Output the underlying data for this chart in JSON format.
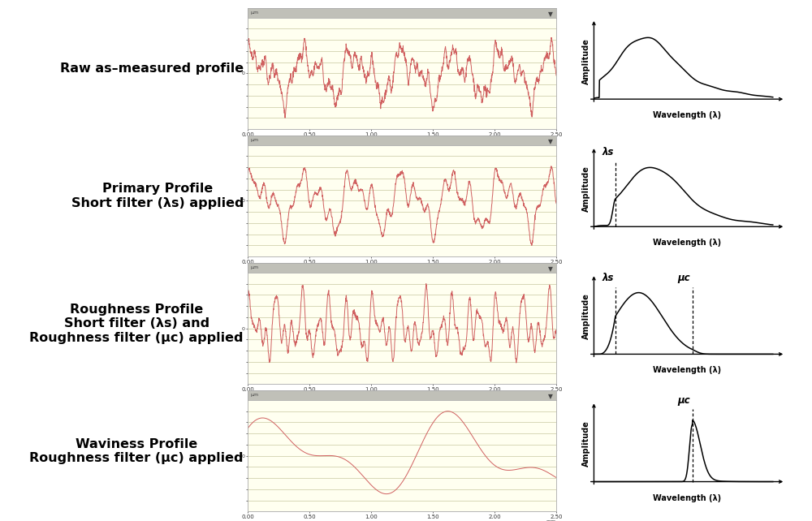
{
  "background_color": "#ffffff",
  "plot_bg_color": "#fffff0",
  "profile_line_color": "#d06060",
  "spectrum_line_color": "#000000",
  "grid_color": "#c8c8a0",
  "panel_border_color": "#aaaaaa",
  "panel_header_color": "#c0c0b8",
  "rows": [
    {
      "label": "Raw as–measured profile",
      "label_lines": 1,
      "profile_type": "raw",
      "spectrum_type": "raw"
    },
    {
      "label": "Primary Profile\nShort filter (λs) applied",
      "label_lines": 2,
      "profile_type": "primary",
      "spectrum_type": "primary"
    },
    {
      "label": "Roughness Profile\nShort filter (λs) and\nRoughness filter (μc) applied",
      "label_lines": 3,
      "profile_type": "roughness",
      "spectrum_type": "roughness"
    },
    {
      "label": "Waviness Profile\nRoughness filter (μc) applied",
      "label_lines": 2,
      "profile_type": "waviness",
      "spectrum_type": "waviness"
    }
  ],
  "xlabel_spectrum": "Wavelength (λ)",
  "ylabel_spectrum": "Amplitude",
  "lambda_s_label": "λs",
  "lambda_c_label": "μc",
  "label_fontsize": 11.5,
  "tick_fontsize": 5.0
}
